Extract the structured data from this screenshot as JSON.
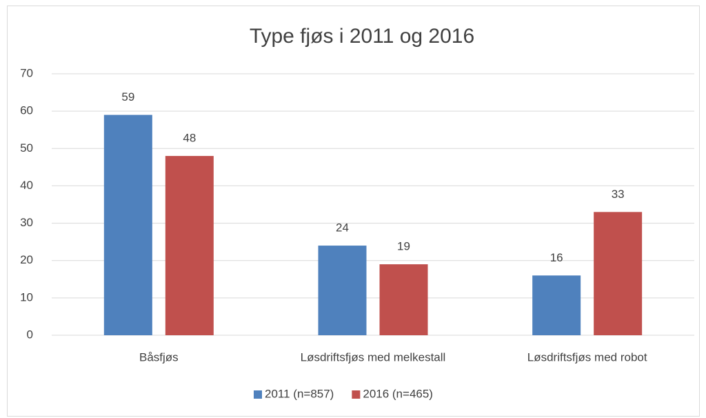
{
  "chart_data": {
    "type": "bar",
    "title": "Type fjøs i 2011 og 2016",
    "categories": [
      "Båsfjøs",
      "Løsdriftsfjøs med melkestall",
      "Løsdriftsfjøs med robot"
    ],
    "series": [
      {
        "name": "2011 (n=857)",
        "color": "#4f81bd",
        "values": [
          59,
          24,
          16
        ]
      },
      {
        "name": "2016 (n=465)",
        "color": "#c0504d",
        "values": [
          48,
          19,
          33
        ]
      }
    ],
    "ylim": [
      0,
      70
    ],
    "yticks": [
      0,
      10,
      20,
      30,
      40,
      50,
      60,
      70
    ],
    "grid": true,
    "legend": "bottom"
  }
}
